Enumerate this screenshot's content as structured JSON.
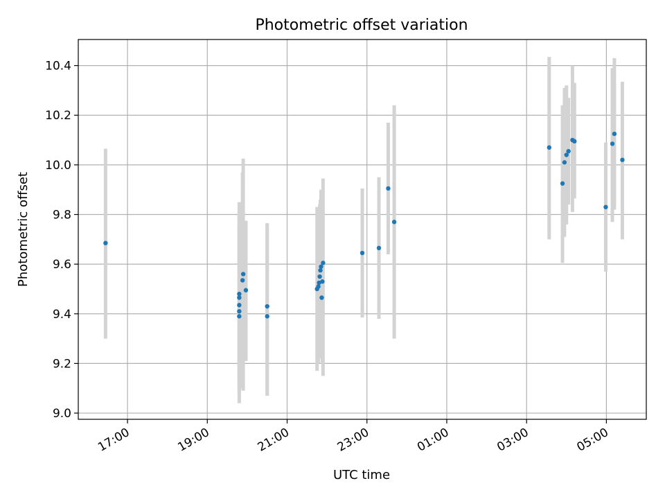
{
  "chart_data": {
    "type": "scatter",
    "title": "Photometric offset variation",
    "xlabel": "UTC time",
    "ylabel": "Photometric offset",
    "x_axis_type": "time",
    "xlim": [
      "2000-01-01T15:46:00",
      "2000-01-02T06:00:00"
    ],
    "ylim": [
      8.975,
      10.505
    ],
    "grid": true,
    "x_ticks": [
      {
        "t": "2000-01-01T17:00:00",
        "label": "17:00"
      },
      {
        "t": "2000-01-01T19:00:00",
        "label": "19:00"
      },
      {
        "t": "2000-01-01T21:00:00",
        "label": "21:00"
      },
      {
        "t": "2000-01-01T23:00:00",
        "label": "23:00"
      },
      {
        "t": "2000-01-02T01:00:00",
        "label": "01:00"
      },
      {
        "t": "2000-01-02T03:00:00",
        "label": "03:00"
      },
      {
        "t": "2000-01-02T05:00:00",
        "label": "05:00"
      }
    ],
    "y_ticks": [
      {
        "v": 9.0,
        "label": "9.0"
      },
      {
        "v": 9.2,
        "label": "9.2"
      },
      {
        "v": 9.4,
        "label": "9.4"
      },
      {
        "v": 9.6,
        "label": "9.6"
      },
      {
        "v": 9.8,
        "label": "9.8"
      },
      {
        "v": 10.0,
        "label": "10.0"
      },
      {
        "v": 10.2,
        "label": "10.2"
      },
      {
        "v": 10.4,
        "label": "10.4"
      }
    ],
    "colors": {
      "point": "#1f77b4",
      "error_bar": "#d3d3d3",
      "grid": "#b0b0b0",
      "axes": "#000000"
    },
    "points": [
      {
        "t": "2000-01-01T16:27:00",
        "y": 9.685,
        "err_low": 9.3,
        "err_high": 10.065
      },
      {
        "t": "2000-01-01T19:48:00",
        "y": 9.39,
        "err_low": 9.04,
        "err_high": 9.85
      },
      {
        "t": "2000-01-01T19:48:00",
        "y": 9.41,
        "err_low": 9.08,
        "err_high": 9.8
      },
      {
        "t": "2000-01-01T19:48:00",
        "y": 9.435,
        "err_low": 9.1,
        "err_high": 9.78
      },
      {
        "t": "2000-01-01T19:48:00",
        "y": 9.465,
        "err_low": 9.12,
        "err_high": 9.76
      },
      {
        "t": "2000-01-01T19:48:00",
        "y": 9.48,
        "err_low": 9.15,
        "err_high": 9.75
      },
      {
        "t": "2000-01-01T19:53:00",
        "y": 9.535,
        "err_low": 9.1,
        "err_high": 9.97
      },
      {
        "t": "2000-01-01T19:54:00",
        "y": 9.56,
        "err_low": 9.09,
        "err_high": 10.025
      },
      {
        "t": "2000-01-01T19:58:00",
        "y": 9.495,
        "err_low": 9.21,
        "err_high": 9.775
      },
      {
        "t": "2000-01-01T20:30:00",
        "y": 9.43,
        "err_low": 9.07,
        "err_high": 9.765
      },
      {
        "t": "2000-01-01T20:30:00",
        "y": 9.39,
        "err_low": 9.07,
        "err_high": 9.765
      },
      {
        "t": "2000-01-01T21:45:00",
        "y": 9.5,
        "err_low": 9.17,
        "err_high": 9.83
      },
      {
        "t": "2000-01-01T21:47:00",
        "y": 9.51,
        "err_low": 9.2,
        "err_high": 9.8
      },
      {
        "t": "2000-01-01T21:48:00",
        "y": 9.525,
        "err_low": 9.22,
        "err_high": 9.81
      },
      {
        "t": "2000-01-01T21:49:00",
        "y": 9.55,
        "err_low": 9.24,
        "err_high": 9.84
      },
      {
        "t": "2000-01-01T21:50:00",
        "y": 9.575,
        "err_low": 9.23,
        "err_high": 9.86
      },
      {
        "t": "2000-01-01T21:51:00",
        "y": 9.59,
        "err_low": 9.25,
        "err_high": 9.9
      },
      {
        "t": "2000-01-01T21:52:00",
        "y": 9.465,
        "err_low": 9.22,
        "err_high": 9.75
      },
      {
        "t": "2000-01-01T21:53:00",
        "y": 9.53,
        "err_low": 9.2,
        "err_high": 9.85
      },
      {
        "t": "2000-01-01T21:54:00",
        "y": 9.605,
        "err_low": 9.15,
        "err_high": 9.945
      },
      {
        "t": "2000-01-01T22:53:00",
        "y": 9.645,
        "err_low": 9.385,
        "err_high": 9.905
      },
      {
        "t": "2000-01-01T23:18:00",
        "y": 9.665,
        "err_low": 9.38,
        "err_high": 9.95
      },
      {
        "t": "2000-01-01T23:32:00",
        "y": 9.905,
        "err_low": 9.64,
        "err_high": 10.17
      },
      {
        "t": "2000-01-01T23:41:00",
        "y": 9.77,
        "err_low": 9.3,
        "err_high": 10.24
      },
      {
        "t": "2000-01-02T03:34:00",
        "y": 10.07,
        "err_low": 9.7,
        "err_high": 10.435
      },
      {
        "t": "2000-01-02T03:54:00",
        "y": 9.925,
        "err_low": 9.605,
        "err_high": 10.24
      },
      {
        "t": "2000-01-02T03:57:00",
        "y": 10.01,
        "err_low": 9.71,
        "err_high": 10.31
      },
      {
        "t": "2000-01-02T04:00:00",
        "y": 10.04,
        "err_low": 9.76,
        "err_high": 10.32
      },
      {
        "t": "2000-01-02T04:03:00",
        "y": 10.055,
        "err_low": 9.84,
        "err_high": 10.27
      },
      {
        "t": "2000-01-02T04:09:00",
        "y": 10.1,
        "err_low": 9.81,
        "err_high": 10.4
      },
      {
        "t": "2000-01-02T04:12:00",
        "y": 10.095,
        "err_low": 9.865,
        "err_high": 10.33
      },
      {
        "t": "2000-01-02T04:59:00",
        "y": 9.83,
        "err_low": 9.57,
        "err_high": 10.09
      },
      {
        "t": "2000-01-02T05:09:00",
        "y": 10.085,
        "err_low": 9.77,
        "err_high": 10.39
      },
      {
        "t": "2000-01-02T05:12:00",
        "y": 10.125,
        "err_low": 9.82,
        "err_high": 10.43
      },
      {
        "t": "2000-01-02T05:24:00",
        "y": 10.02,
        "err_low": 9.7,
        "err_high": 10.335
      }
    ]
  }
}
